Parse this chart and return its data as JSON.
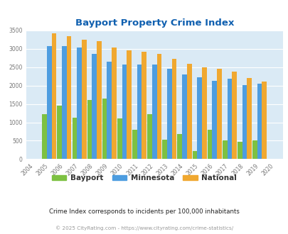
{
  "title": "Bayport Property Crime Index",
  "years": [
    "2004",
    "2005",
    "2006",
    "2007",
    "2008",
    "2009",
    "2010",
    "2011",
    "2012",
    "2013",
    "2014",
    "2015",
    "2016",
    "2017",
    "2018",
    "2019",
    "2020"
  ],
  "bayport": [
    0,
    1220,
    1450,
    1120,
    1600,
    1650,
    1100,
    790,
    1230,
    530,
    680,
    220,
    800,
    510,
    480,
    500,
    0
  ],
  "minnesota": [
    0,
    3080,
    3080,
    3040,
    2860,
    2640,
    2580,
    2570,
    2580,
    2460,
    2310,
    2220,
    2130,
    2180,
    2010,
    2060,
    0
  ],
  "national": [
    0,
    3420,
    3340,
    3250,
    3210,
    3040,
    2960,
    2920,
    2870,
    2720,
    2590,
    2490,
    2460,
    2370,
    2200,
    2110,
    0
  ],
  "bayport_color": "#7dc142",
  "minnesota_color": "#4d9de0",
  "national_color": "#f0a830",
  "bg_color": "#daeaf5",
  "title_color": "#1060b0",
  "subtitle": "Crime Index corresponds to incidents per 100,000 inhabitants",
  "footer": "© 2025 CityRating.com - https://www.cityrating.com/crime-statistics/",
  "ylim": [
    0,
    3500
  ],
  "yticks": [
    0,
    500,
    1000,
    1500,
    2000,
    2500,
    3000,
    3500
  ]
}
